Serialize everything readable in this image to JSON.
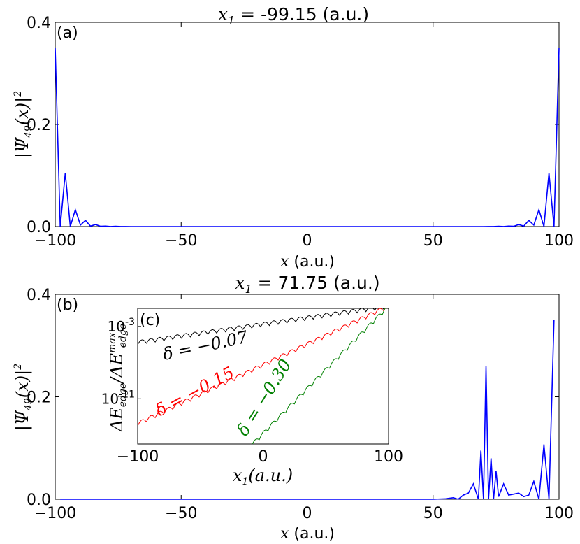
{
  "chart_data": [
    {
      "type": "line",
      "panel_label": "(a)",
      "title_var": "x",
      "title_sub": "1",
      "title_value": "-99.15 (a.u.)",
      "ylabel": "|Ψ49(x)|²",
      "xlabel_var": "x",
      "xlabel_unit": "(a.u.)",
      "xlim": [
        -100,
        100
      ],
      "ylim": [
        0,
        0.4
      ],
      "xticks": [
        -100,
        -50,
        0,
        50,
        100
      ],
      "xtick_labels": [
        "−100",
        "−50",
        "0",
        "50",
        "100"
      ],
      "yticks": [
        0,
        0.2,
        0.4
      ],
      "ytick_labels": [
        "0.0",
        "0.2",
        "0.4"
      ],
      "color": "#0000ff",
      "series": [
        {
          "x": [
            -100,
            -98,
            -96,
            -94,
            -92,
            -90,
            -88,
            -86,
            -84,
            -82,
            -80,
            -78,
            -76,
            -74,
            -72,
            -70,
            -60,
            -50,
            -40,
            -30,
            -20,
            -10,
            0,
            10,
            20,
            30,
            40,
            50,
            60,
            70,
            72,
            74,
            76,
            78,
            80,
            82,
            84,
            86,
            88,
            90,
            92,
            94,
            96,
            98,
            100
          ],
          "y": [
            0.35,
            0.0,
            0.105,
            0.0,
            0.033,
            0.003,
            0.012,
            0.001,
            0.004,
            0.0005,
            0.001,
            0.0002,
            0.0005,
            0.0001,
            0.0002,
            0.0,
            0.0,
            0.0,
            0.0,
            0.0,
            0.0,
            0.0,
            0.0,
            0.0,
            0.0,
            0.0,
            0.0,
            0.0,
            0.0,
            0.0,
            0.0002,
            0.0001,
            0.0005,
            0.0002,
            0.001,
            0.0005,
            0.004,
            0.001,
            0.012,
            0.003,
            0.033,
            0.0,
            0.105,
            0.0,
            0.35
          ]
        }
      ]
    },
    {
      "type": "line",
      "panel_label": "(b)",
      "title_var": "x",
      "title_sub": "1",
      "title_value": "71.75 (a.u.)",
      "ylabel": "|Ψ49(x)|²",
      "xlabel_var": "x",
      "xlabel_unit": "(a.u.)",
      "xlim": [
        -100,
        100
      ],
      "ylim": [
        0,
        0.4
      ],
      "xticks": [
        -100,
        -50,
        0,
        50,
        100
      ],
      "xtick_labels": [
        "−100",
        "−50",
        "0",
        "50",
        "100"
      ],
      "yticks": [
        0,
        0.2,
        0.4
      ],
      "ytick_labels": [
        "0.0",
        "0.2",
        "0.4"
      ],
      "color": "#0000ff",
      "series": [
        {
          "x": [
            -98,
            -80,
            -60,
            -40,
            -20,
            0,
            20,
            40,
            50,
            55,
            58,
            60,
            62,
            64,
            66,
            68,
            69,
            70,
            71,
            72,
            73,
            74,
            75,
            76,
            78,
            80,
            82,
            84,
            86,
            88,
            90,
            92,
            94,
            96,
            98
          ],
          "y": [
            0.0,
            0.0,
            0.0,
            0.0,
            0.0,
            0.0,
            0.0,
            0.0,
            0.0,
            0.001,
            0.003,
            0.0,
            0.008,
            0.012,
            0.03,
            0.0,
            0.095,
            0.0,
            0.26,
            0.0,
            0.08,
            0.0,
            0.055,
            0.005,
            0.03,
            0.008,
            0.01,
            0.012,
            0.005,
            0.008,
            0.035,
            0.0,
            0.107,
            0.0,
            0.35
          ]
        }
      ],
      "inset": {
        "type": "line",
        "panel_label": "(c)",
        "ylabel": "ΔE_edge/ΔE_edge^max",
        "xlabel": "x1(a.u.)",
        "xlim": [
          -100,
          100
        ],
        "ylim": [
          -16,
          -1
        ],
        "yscale": "log",
        "xticks": [
          -100,
          0,
          100
        ],
        "xtick_labels": [
          "−100",
          "0",
          "100"
        ],
        "yticks": [
          -3,
          -11
        ],
        "ytick_labels": [
          "10-3",
          "10-11"
        ],
        "oscillation_period": 7,
        "series": [
          {
            "name": "δ = −0.07",
            "color": "#000000",
            "x": [
              -100,
              100
            ],
            "log10_y": [
              -5.0,
              -1.0
            ],
            "amplitude": 0.45
          },
          {
            "name": "δ = −0.15",
            "color": "#ff0000",
            "x": [
              -100,
              100
            ],
            "log10_y": [
              -14.0,
              -1.0
            ],
            "amplitude": 0.45
          },
          {
            "name": "δ = −0.30",
            "color": "#008000",
            "x": [
              -10,
              100
            ],
            "log10_y": [
              -16.5,
              -1.0
            ],
            "amplitude": 0.45
          }
        ]
      }
    }
  ]
}
